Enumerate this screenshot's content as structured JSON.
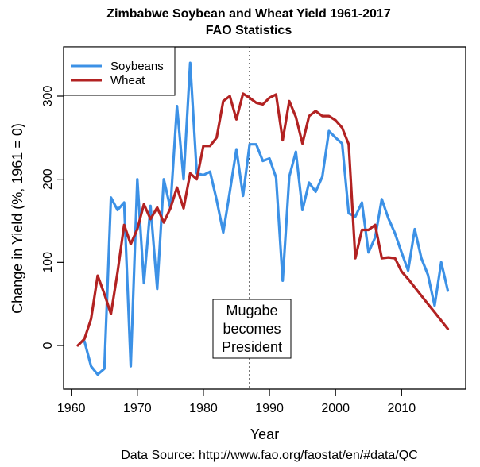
{
  "chart_data": {
    "type": "line",
    "title": "Zimbabwe Soybean and Wheat Yield 1961-2017",
    "subtitle": "FAO Statistics",
    "xlabel": "Year",
    "ylabel": "Change in Yield (%, 1961 = 0)",
    "source": "Data Source: http://www.fao.org/faostat/en/#data/QC",
    "xlim": [
      1961,
      2017
    ],
    "ylim": [
      -40,
      340
    ],
    "xticks": [
      1960,
      1970,
      1980,
      1990,
      2000,
      2010
    ],
    "yticks": [
      0,
      100,
      200,
      300
    ],
    "legend": {
      "position": "top-left"
    },
    "annotation": {
      "x": 1987,
      "lines": [
        "Mugabe",
        "becomes",
        "President"
      ]
    },
    "series": [
      {
        "name": "Soybeans",
        "color": "#3c91e6",
        "x": [
          1962,
          1963,
          1964,
          1965,
          1966,
          1967,
          1968,
          1969,
          1970,
          1971,
          1972,
          1973,
          1974,
          1975,
          1976,
          1977,
          1978,
          1979,
          1980,
          1981,
          1982,
          1983,
          1984,
          1985,
          1986,
          1987,
          1988,
          1989,
          1990,
          1991,
          1992,
          1993,
          1994,
          1995,
          1996,
          1997,
          1998,
          1999,
          2000,
          2001,
          2002,
          2003,
          2004,
          2005,
          2006,
          2007,
          2008,
          2009,
          2010,
          2011,
          2012,
          2013,
          2014,
          2015,
          2016,
          2017
        ],
        "y": [
          5,
          -25,
          -35,
          -28,
          178,
          163,
          172,
          -25,
          200,
          75,
          168,
          68,
          200,
          165,
          288,
          200,
          340,
          207,
          205,
          209,
          175,
          136,
          185,
          236,
          180,
          242,
          242,
          222,
          225,
          202,
          78,
          203,
          233,
          163,
          196,
          185,
          203,
          258,
          250,
          243,
          159,
          155,
          172,
          112,
          130,
          176,
          153,
          135,
          112,
          90,
          140,
          105,
          85,
          48,
          100,
          66
        ]
      },
      {
        "name": "Wheat",
        "color": "#b22222",
        "x": [
          1961,
          1962,
          1963,
          1964,
          1965,
          1966,
          1967,
          1968,
          1969,
          1970,
          1971,
          1972,
          1973,
          1974,
          1975,
          1976,
          1977,
          1978,
          1979,
          1980,
          1981,
          1982,
          1983,
          1984,
          1985,
          1986,
          1987,
          1988,
          1989,
          1990,
          1991,
          1992,
          1993,
          1994,
          1995,
          1996,
          1997,
          1998,
          1999,
          2000,
          2001,
          2002,
          2003,
          2004,
          2005,
          2006,
          2007,
          2008,
          2009,
          2010,
          2011,
          2012,
          2013,
          2014,
          2015,
          2016,
          2017
        ],
        "y": [
          0,
          8,
          32,
          84,
          62,
          38,
          88,
          145,
          122,
          140,
          170,
          152,
          166,
          148,
          165,
          190,
          165,
          207,
          200,
          240,
          240,
          250,
          294,
          300,
          272,
          303,
          298,
          292,
          290,
          298,
          302,
          247,
          294,
          275,
          243,
          276,
          282,
          276,
          276,
          271,
          262,
          242,
          105,
          139,
          139,
          145,
          105,
          106,
          105,
          89,
          80,
          70,
          60,
          50,
          40,
          30,
          20
        ]
      }
    ]
  }
}
